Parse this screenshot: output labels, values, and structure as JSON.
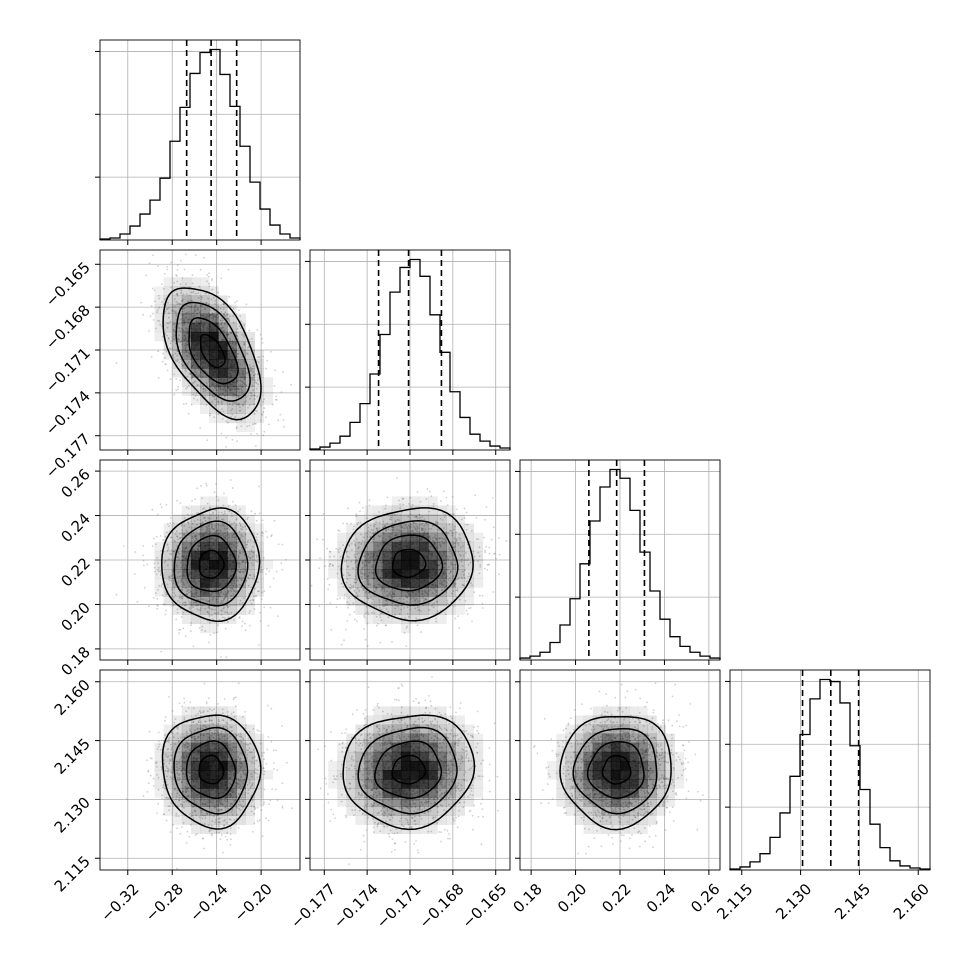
{
  "chart_data": {
    "type": "corner",
    "grid": true,
    "parameters": [
      {
        "range": [
          -0.345,
          -0.165
        ],
        "ticks": [
          -0.32,
          -0.28,
          -0.24,
          -0.2
        ],
        "tick_labels": [
          "−0.32",
          "−0.28",
          "−0.24",
          "−0.20"
        ],
        "quantiles": [
          -0.267,
          -0.245,
          -0.222
        ],
        "histogram": {
          "bin_edges": [
            -0.345,
            -0.336,
            -0.327,
            -0.318,
            -0.309,
            -0.3,
            -0.291,
            -0.282,
            -0.273,
            -0.264,
            -0.255,
            -0.246,
            -0.237,
            -0.228,
            -0.219,
            -0.21,
            -0.201,
            -0.192,
            -0.183,
            -0.174,
            -0.165
          ],
          "counts": [
            1,
            2,
            6,
            14,
            26,
            40,
            62,
            99,
            133,
            167,
            188,
            191,
            166,
            134,
            94,
            58,
            31,
            15,
            6,
            2
          ]
        }
      },
      {
        "range": [
          -0.178,
          -0.164
        ],
        "ticks": [
          -0.177,
          -0.174,
          -0.171,
          -0.168,
          -0.165
        ],
        "tick_labels": [
          "−0.177",
          "−0.174",
          "−0.171",
          "−0.168",
          "−0.165"
        ],
        "quantiles": [
          -0.1732,
          -0.1711,
          -0.1688
        ],
        "histogram": {
          "bin_edges": [
            -0.178,
            -0.1773,
            -0.1766,
            -0.1759,
            -0.1752,
            -0.1745,
            -0.1738,
            -0.1731,
            -0.1724,
            -0.1717,
            -0.171,
            -0.1703,
            -0.1696,
            -0.1689,
            -0.1682,
            -0.1675,
            -0.1668,
            -0.1661,
            -0.1654,
            -0.1647,
            -0.164
          ],
          "counts": [
            1,
            3,
            7,
            14,
            28,
            47,
            77,
            117,
            160,
            185,
            193,
            176,
            137,
            99,
            59,
            33,
            16,
            9,
            4,
            2
          ]
        }
      },
      {
        "range": [
          0.175,
          0.265
        ],
        "ticks": [
          0.18,
          0.2,
          0.22,
          0.24,
          0.26
        ],
        "tick_labels": [
          "0.18",
          "0.20",
          "0.22",
          "0.24",
          "0.26"
        ],
        "quantiles": [
          0.206,
          0.2185,
          0.231
        ],
        "histogram": {
          "bin_edges": [
            0.175,
            0.1795,
            0.184,
            0.1885,
            0.193,
            0.1975,
            0.202,
            0.2065,
            0.211,
            0.2155,
            0.22,
            0.2245,
            0.229,
            0.2335,
            0.238,
            0.2425,
            0.247,
            0.2515,
            0.256,
            0.2605,
            0.265
          ],
          "counts": [
            2,
            4,
            8,
            18,
            36,
            63,
            99,
            143,
            178,
            196,
            187,
            154,
            111,
            71,
            42,
            24,
            14,
            8,
            4,
            2
          ]
        }
      },
      {
        "range": [
          2.112,
          2.163
        ],
        "ticks": [
          2.115,
          2.13,
          2.145,
          2.16
        ],
        "tick_labels": [
          "2.115",
          "2.130",
          "2.145",
          "2.160"
        ],
        "quantiles": [
          2.1305,
          2.1377,
          2.1448
        ],
        "histogram": {
          "bin_edges": [
            2.112,
            2.11455,
            2.1171,
            2.11965,
            2.1222,
            2.12475,
            2.1273,
            2.12985,
            2.1324,
            2.13495,
            2.1375,
            2.14005,
            2.1426,
            2.14515,
            2.1477,
            2.15025,
            2.1528,
            2.15535,
            2.1579,
            2.16045,
            2.163
          ],
          "counts": [
            1,
            3,
            8,
            16,
            32,
            56,
            92,
            133,
            168,
            187,
            185,
            164,
            122,
            79,
            45,
            22,
            9,
            4,
            2,
            1
          ]
        }
      }
    ],
    "joint": [
      {
        "row": 1,
        "col": 0,
        "center": [
          -0.244,
          -0.1711
        ],
        "sigma": [
          0.022,
          0.0023
        ],
        "correlation": -0.52
      },
      {
        "row": 2,
        "col": 0,
        "center": [
          -0.245,
          0.218
        ],
        "sigma": [
          0.022,
          0.0125
        ],
        "correlation": 0.03
      },
      {
        "row": 2,
        "col": 1,
        "center": [
          -0.1711,
          0.2185
        ],
        "sigma": [
          0.0023,
          0.0125
        ],
        "correlation": 0.04
      },
      {
        "row": 3,
        "col": 0,
        "center": [
          -0.245,
          2.1375
        ],
        "sigma": [
          0.022,
          0.0072
        ],
        "correlation": -0.05
      },
      {
        "row": 3,
        "col": 1,
        "center": [
          -0.1711,
          2.1375
        ],
        "sigma": [
          0.0023,
          0.0072
        ],
        "correlation": 0.06
      },
      {
        "row": 3,
        "col": 2,
        "center": [
          0.2185,
          2.1375
        ],
        "sigma": [
          0.0125,
          0.0072
        ],
        "correlation": 0.02
      }
    ]
  }
}
